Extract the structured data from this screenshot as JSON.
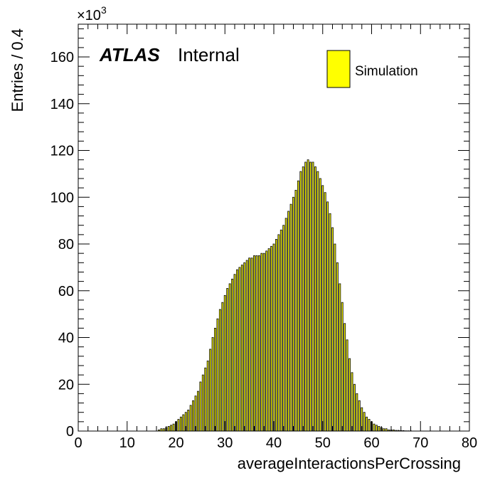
{
  "chart_data": {
    "type": "bar",
    "xlabel": "averageInteractionsPerCrossing",
    "ylabel": "Entries / 0.4",
    "xlim": [
      0,
      80
    ],
    "ylim": [
      0,
      174
    ],
    "y_multiplier": "×10",
    "y_multiplier_exp": "3",
    "x_ticks": [
      0,
      10,
      20,
      30,
      40,
      50,
      60,
      70,
      80
    ],
    "y_ticks": [
      0,
      20,
      40,
      60,
      80,
      100,
      120,
      140,
      160
    ],
    "grid": false,
    "legend_position": "top-right",
    "annotation": {
      "bold_italic": "ATLAS",
      "normal": "Internal"
    },
    "bar_color": "#ffff00",
    "edge_color": "#000000",
    "series": [
      {
        "name": "Simulation",
        "x": [
          16.5,
          17,
          17.5,
          18,
          18.5,
          19,
          19.5,
          20,
          20.5,
          21,
          21.5,
          22,
          22.5,
          23,
          23.5,
          24,
          24.5,
          25,
          25.5,
          26,
          26.5,
          27,
          27.5,
          28,
          28.5,
          29,
          29.5,
          30,
          30.5,
          31,
          31.5,
          32,
          32.5,
          33,
          33.5,
          34,
          34.5,
          35,
          35.5,
          36,
          36.5,
          37,
          37.5,
          38,
          38.5,
          39,
          39.5,
          40,
          40.5,
          41,
          41.5,
          42,
          42.5,
          43,
          43.5,
          44,
          44.5,
          45,
          45.5,
          46,
          46.5,
          47,
          47.5,
          48,
          48.5,
          49,
          49.5,
          50,
          50.5,
          51,
          51.5,
          52,
          52.5,
          53,
          53.5,
          54,
          54.5,
          55,
          55.5,
          56,
          56.5,
          57,
          57.5,
          58,
          58.5,
          59,
          59.5,
          60,
          60.5,
          61,
          61.5,
          62,
          62.5,
          63,
          63.5,
          64,
          64.5,
          65,
          65.5,
          66,
          66.5,
          67,
          67.5,
          68
        ],
        "values": [
          0.5,
          1,
          1,
          1.5,
          2,
          2.5,
          3,
          4,
          5,
          6,
          7,
          8,
          9,
          11,
          13,
          15,
          17,
          21,
          24,
          27,
          30,
          35,
          40,
          44,
          48,
          52,
          55,
          58,
          61,
          63,
          65,
          67,
          69,
          70,
          71,
          72,
          73,
          74,
          74,
          75,
          75,
          75,
          76,
          76,
          77,
          78,
          79,
          80,
          82,
          84,
          86,
          88,
          91,
          94,
          97,
          100,
          103,
          107,
          111,
          113,
          115,
          116,
          115,
          115,
          113,
          111,
          108,
          105,
          102,
          98,
          93,
          87,
          80,
          72,
          63,
          55,
          46,
          39,
          31,
          25,
          20,
          16,
          13,
          10,
          8,
          6,
          5,
          4,
          3,
          2.5,
          2,
          1.5,
          1,
          1,
          0.5,
          0.5,
          0.5,
          0.3,
          0.3,
          0.2,
          0.2,
          0.1,
          0.1,
          0.1
        ]
      }
    ]
  }
}
